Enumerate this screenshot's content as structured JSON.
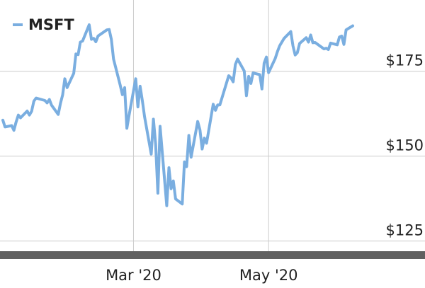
{
  "chart_data": {
    "type": "line",
    "title": "",
    "xlabel": "",
    "ylabel": "",
    "legend": {
      "placement": "top-left",
      "entries": [
        "MSFT"
      ]
    },
    "grid": true,
    "ylim": [
      122,
      196
    ],
    "y_ticks": [
      125,
      150,
      175
    ],
    "y_tick_labels": [
      "$125",
      "$150",
      "$175"
    ],
    "y_axis_side": "right",
    "x_ticks": [
      {
        "date": "2020-03-01",
        "label": "Mar '20"
      },
      {
        "date": "2020-05-01",
        "label": "May '20"
      }
    ],
    "series": [
      {
        "name": "MSFT",
        "color": "#7aaee0",
        "x": [
          "2020-01-02",
          "2020-01-03",
          "2020-01-06",
          "2020-01-07",
          "2020-01-08",
          "2020-01-09",
          "2020-01-10",
          "2020-01-13",
          "2020-01-14",
          "2020-01-15",
          "2020-01-16",
          "2020-01-17",
          "2020-01-21",
          "2020-01-22",
          "2020-01-23",
          "2020-01-24",
          "2020-01-27",
          "2020-01-28",
          "2020-01-29",
          "2020-01-30",
          "2020-01-31",
          "2020-02-03",
          "2020-02-04",
          "2020-02-05",
          "2020-02-06",
          "2020-02-07",
          "2020-02-10",
          "2020-02-11",
          "2020-02-12",
          "2020-02-13",
          "2020-02-14",
          "2020-02-18",
          "2020-02-19",
          "2020-02-20",
          "2020-02-21",
          "2020-02-24",
          "2020-02-25",
          "2020-02-26",
          "2020-02-27",
          "2020-02-28",
          "2020-03-02",
          "2020-03-03",
          "2020-03-04",
          "2020-03-05",
          "2020-03-06",
          "2020-03-09",
          "2020-03-10",
          "2020-03-11",
          "2020-03-12",
          "2020-03-13",
          "2020-03-16",
          "2020-03-17",
          "2020-03-18",
          "2020-03-19",
          "2020-03-20",
          "2020-03-23",
          "2020-03-24",
          "2020-03-25",
          "2020-03-26",
          "2020-03-27",
          "2020-03-30",
          "2020-03-31",
          "2020-04-01",
          "2020-04-02",
          "2020-04-03",
          "2020-04-06",
          "2020-04-07",
          "2020-04-08",
          "2020-04-09",
          "2020-04-13",
          "2020-04-14",
          "2020-04-15",
          "2020-04-16",
          "2020-04-17",
          "2020-04-20",
          "2020-04-21",
          "2020-04-22",
          "2020-04-23",
          "2020-04-24",
          "2020-04-27",
          "2020-04-28",
          "2020-04-29",
          "2020-04-30",
          "2020-05-01",
          "2020-05-04",
          "2020-05-05",
          "2020-05-06",
          "2020-05-07",
          "2020-05-08",
          "2020-05-11",
          "2020-05-12",
          "2020-05-13",
          "2020-05-14",
          "2020-05-15",
          "2020-05-18",
          "2020-05-19",
          "2020-05-20",
          "2020-05-21",
          "2020-05-22",
          "2020-05-26",
          "2020-05-27",
          "2020-05-28",
          "2020-05-29",
          "2020-06-01",
          "2020-06-02",
          "2020-06-03",
          "2020-06-04",
          "2020-06-05",
          "2020-06-08"
        ],
        "values": [
          160.6,
          158.6,
          159.0,
          157.6,
          160.1,
          162.1,
          161.3,
          163.3,
          162.1,
          163.2,
          166.2,
          167.1,
          166.4,
          165.7,
          166.7,
          165.0,
          162.3,
          165.5,
          168.0,
          172.8,
          170.2,
          174.4,
          180.1,
          179.9,
          183.6,
          183.9,
          188.7,
          184.4,
          184.7,
          183.7,
          185.4,
          187.2,
          187.3,
          184.4,
          178.6,
          170.9,
          168.1,
          170.2,
          158.2,
          162.0,
          172.8,
          164.5,
          170.6,
          166.3,
          161.6,
          150.6,
          160.9,
          153.6,
          139.1,
          158.8,
          135.4,
          146.6,
          140.4,
          142.7,
          137.4,
          135.9,
          148.3,
          146.9,
          156.1,
          149.7,
          160.2,
          157.7,
          152.1,
          155.3,
          153.8,
          165.3,
          163.5,
          165.1,
          165.1,
          173.7,
          173.1,
          171.9,
          177.0,
          178.6,
          175.1,
          167.8,
          173.5,
          171.4,
          174.5,
          174.0,
          169.8,
          177.4,
          179.2,
          174.6,
          178.8,
          180.8,
          182.5,
          183.6,
          184.7,
          186.7,
          182.5,
          179.8,
          180.5,
          183.2,
          184.9,
          183.6,
          185.7,
          183.4,
          183.5,
          181.6,
          181.8,
          181.4,
          183.3,
          182.8,
          185.1,
          185.4,
          182.9,
          187.2,
          188.4
        ]
      }
    ]
  }
}
